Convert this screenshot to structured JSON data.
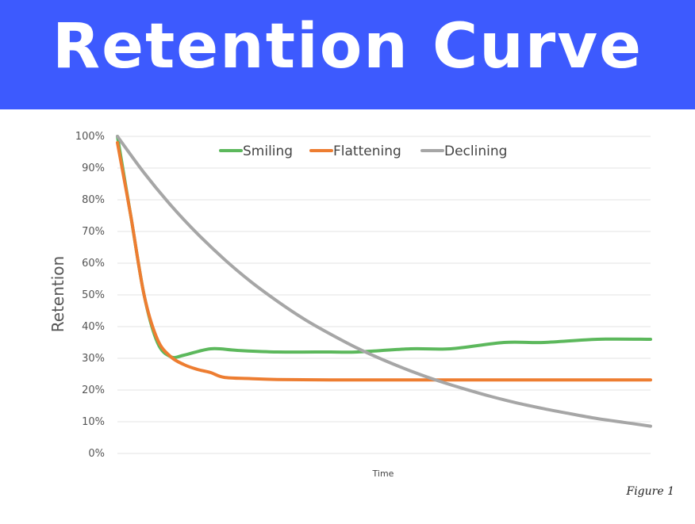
{
  "banner": {
    "title": "Retention Curve",
    "background_color": "#3d5afe"
  },
  "figure_note": "Figure 1",
  "chart_data": {
    "type": "line",
    "title": "",
    "xlabel": "Time",
    "ylabel": "Retention",
    "ylim": [
      0,
      100
    ],
    "xlim": [
      0,
      20
    ],
    "grid": true,
    "legend_position": "top",
    "y_ticks": [
      {
        "value": 0,
        "label": "0%"
      },
      {
        "value": 10,
        "label": "10%"
      },
      {
        "value": 20,
        "label": "20%"
      },
      {
        "value": 30,
        "label": "30%"
      },
      {
        "value": 40,
        "label": "40%"
      },
      {
        "value": 50,
        "label": "50%"
      },
      {
        "value": 60,
        "label": "60%"
      },
      {
        "value": 70,
        "label": "70%"
      },
      {
        "value": 80,
        "label": "80%"
      },
      {
        "value": 90,
        "label": "90%"
      },
      {
        "value": 100,
        "label": "100%"
      }
    ],
    "series": [
      {
        "name": "Smiling",
        "color": "#5cb85c",
        "points": [
          [
            0,
            100
          ],
          [
            0.5,
            75
          ],
          [
            1,
            50
          ],
          [
            1.5,
            35
          ],
          [
            2,
            30.5
          ],
          [
            2.5,
            31
          ],
          [
            3.5,
            33
          ],
          [
            4.5,
            32.5
          ],
          [
            6,
            32
          ],
          [
            8,
            32
          ],
          [
            9,
            32
          ],
          [
            11,
            33
          ],
          [
            12.5,
            33
          ],
          [
            14.5,
            35
          ],
          [
            16,
            35
          ],
          [
            18,
            36
          ],
          [
            20,
            36
          ]
        ]
      },
      {
        "name": "Flattening",
        "color": "#ed7d31",
        "points": [
          [
            0,
            98
          ],
          [
            0.5,
            75
          ],
          [
            1,
            50
          ],
          [
            1.5,
            36
          ],
          [
            2,
            30.5
          ],
          [
            2.5,
            28
          ],
          [
            3,
            26.5
          ],
          [
            3.5,
            25.5
          ],
          [
            4,
            24
          ],
          [
            5,
            23.6
          ],
          [
            6,
            23.3
          ],
          [
            8,
            23.2
          ],
          [
            12,
            23.2
          ],
          [
            16,
            23.2
          ],
          [
            20,
            23.2
          ]
        ]
      },
      {
        "name": "Declining",
        "color": "#a6a6a6",
        "points": [
          [
            0,
            100
          ],
          [
            1,
            88.5
          ],
          [
            2,
            78.3
          ],
          [
            3,
            69.3
          ],
          [
            4,
            61.3
          ],
          [
            5,
            54.2
          ],
          [
            6,
            48
          ],
          [
            7,
            42.4
          ],
          [
            8,
            37.6
          ],
          [
            9,
            33.2
          ],
          [
            10,
            29.4
          ],
          [
            11,
            26
          ],
          [
            12,
            23
          ],
          [
            13,
            20.4
          ],
          [
            14,
            18
          ],
          [
            15,
            15.9
          ],
          [
            16,
            14.1
          ],
          [
            17,
            12.5
          ],
          [
            18,
            11
          ],
          [
            19,
            9.8
          ],
          [
            20,
            8.6
          ]
        ]
      }
    ]
  }
}
